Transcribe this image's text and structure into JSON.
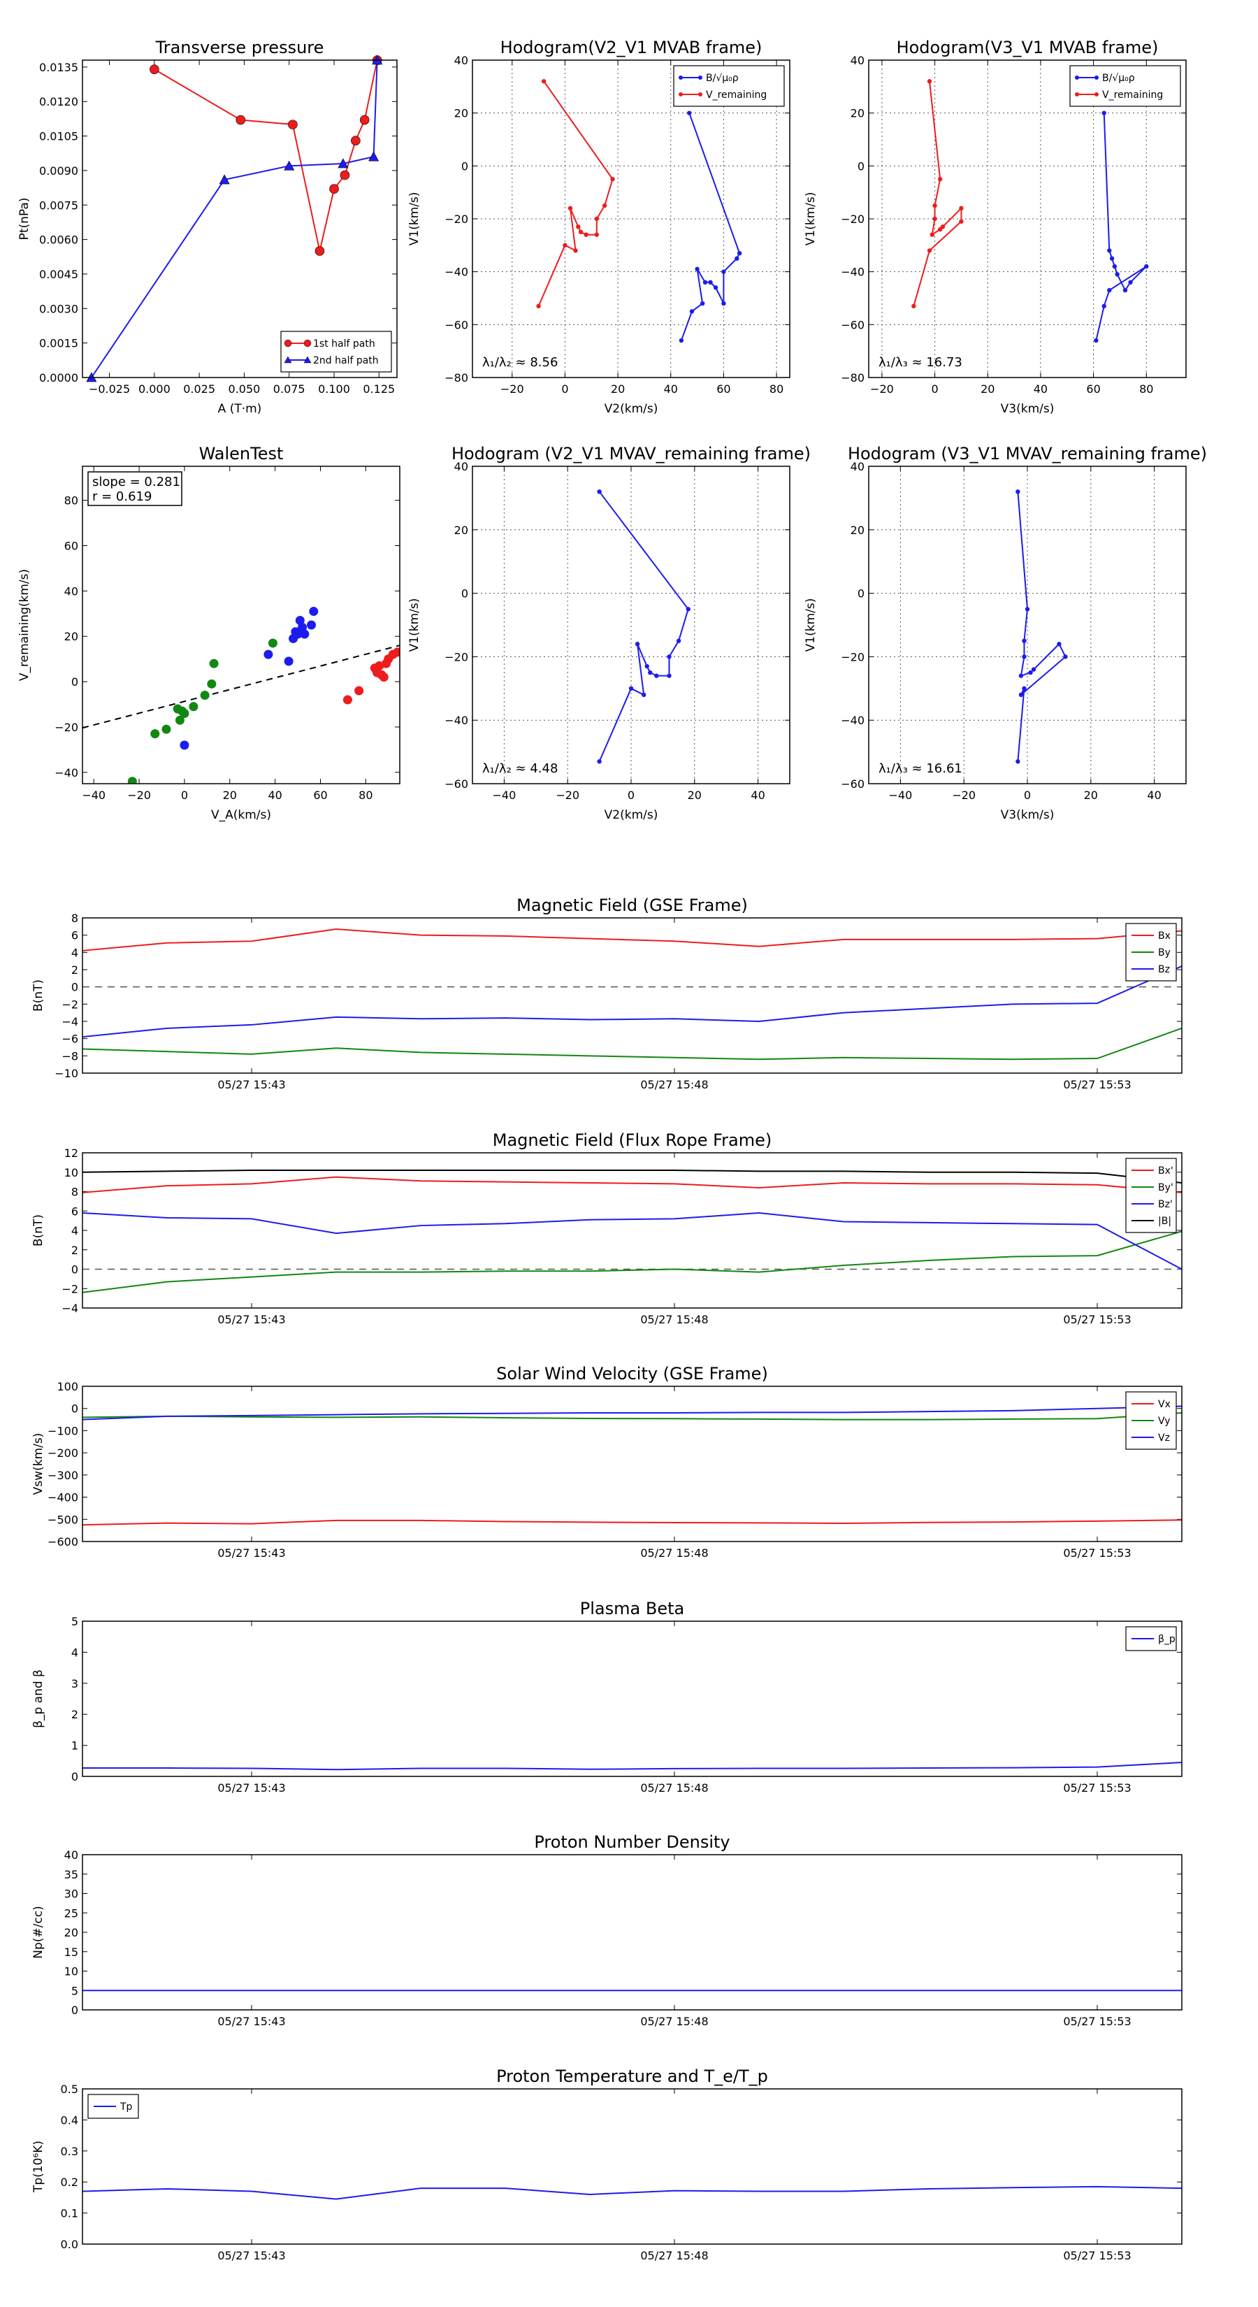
{
  "colors": {
    "red": "#ee1c1c",
    "green": "#118811",
    "blue": "#1c1cee",
    "black": "#000000",
    "grid": "#555555"
  },
  "chart_data": [
    {
      "id": "transverse-pressure",
      "type": "line",
      "title": "Transverse pressure",
      "xlabel": "A (T·m)",
      "ylabel": "Pt(nPa)",
      "xlim": [
        -0.04,
        0.135
      ],
      "ylim": [
        0,
        0.0138
      ],
      "xticks": [
        -0.025,
        0,
        0.025,
        0.05,
        0.075,
        0.1,
        0.125
      ],
      "xticklabels": [
        "−0.025",
        "0.000",
        "0.025",
        "0.050",
        "0.075",
        "0.100",
        "0.125"
      ],
      "yticks": [
        0,
        0.0015,
        0.003,
        0.0045,
        0.006,
        0.0075,
        0.009,
        0.0105,
        0.012,
        0.0135
      ],
      "yticklabels": [
        "0.0000",
        "0.0015",
        "0.0030",
        "0.0045",
        "0.0060",
        "0.0075",
        "0.0090",
        "0.0105",
        "0.0120",
        "0.0135"
      ],
      "grid": false,
      "legend": "lower-right",
      "series": [
        {
          "name": "1st half path",
          "color": "red",
          "marker": "circle",
          "x": [
            0.0,
            0.048,
            0.077,
            0.092,
            0.1,
            0.106,
            0.112,
            0.117,
            0.124
          ],
          "y": [
            0.0134,
            0.0112,
            0.011,
            0.0055,
            0.0082,
            0.0088,
            0.0103,
            0.0112,
            0.0138
          ]
        },
        {
          "name": "2nd half path",
          "color": "blue",
          "marker": "triangle",
          "x": [
            -0.035,
            0.039,
            0.075,
            0.105,
            0.122,
            0.124
          ],
          "y": [
            0.0,
            0.0086,
            0.0092,
            0.0093,
            0.0096,
            0.0138
          ]
        }
      ]
    },
    {
      "id": "hodogram-v2-v1-mvab",
      "type": "line",
      "title": "Hodogram(V2_V1 MVAB frame)",
      "xlabel": "V2(km/s)",
      "ylabel": "V1(km/s)",
      "xlim": [
        -35,
        85
      ],
      "ylim": [
        -80,
        40
      ],
      "xticks": [
        -20,
        0,
        20,
        40,
        60,
        80
      ],
      "yticks": [
        -80,
        -60,
        -40,
        -20,
        0,
        20,
        40
      ],
      "grid": true,
      "legend": "top-right",
      "annotation": "λ₁/λ₂ ≈ 8.56",
      "series": [
        {
          "name": "B/√μ₀ρ",
          "color": "blue",
          "marker": "dot",
          "x": [
            47,
            66,
            65,
            60,
            60,
            57,
            55,
            53,
            50,
            52,
            48,
            44
          ],
          "y": [
            20,
            -33,
            -35,
            -40,
            -52,
            -46,
            -44,
            -44,
            -39,
            -52,
            -55,
            -66
          ]
        },
        {
          "name": "V_remaining",
          "color": "red",
          "marker": "dot",
          "x": [
            -8,
            18,
            15,
            12,
            12,
            8,
            6,
            5,
            2,
            4,
            0,
            -10
          ],
          "y": [
            32,
            -5,
            -15,
            -20,
            -26,
            -26,
            -25,
            -23,
            -16,
            -32,
            -30,
            -53
          ]
        }
      ]
    },
    {
      "id": "hodogram-v3-v1-mvab",
      "type": "line",
      "title": "Hodogram(V3_V1 MVAB frame)",
      "xlabel": "V3(km/s)",
      "ylabel": "V1(km/s)",
      "xlim": [
        -25,
        95
      ],
      "ylim": [
        -80,
        40
      ],
      "xticks": [
        -20,
        0,
        20,
        40,
        60,
        80
      ],
      "yticks": [
        -80,
        -60,
        -40,
        -20,
        0,
        20,
        40
      ],
      "grid": true,
      "legend": "top-right",
      "annotation": "λ₁/λ₃ ≈ 16.73",
      "series": [
        {
          "name": "B/√μ₀ρ",
          "color": "blue",
          "marker": "dot",
          "x": [
            64,
            66,
            67,
            68,
            69,
            72,
            74,
            80,
            66,
            64,
            61
          ],
          "y": [
            20,
            -32,
            -35,
            -38,
            -41,
            -47,
            -44,
            -38,
            -47,
            -53,
            -66
          ]
        },
        {
          "name": "V_remaining",
          "color": "red",
          "marker": "dot",
          "x": [
            -2,
            2,
            0,
            0,
            -1,
            2,
            3,
            10,
            10,
            -2,
            -8
          ],
          "y": [
            32,
            -5,
            -15,
            -20,
            -26,
            -24,
            -23,
            -16,
            -21,
            -32,
            -53
          ]
        }
      ]
    },
    {
      "id": "walen-test",
      "type": "scatter",
      "title": "WalenTest",
      "xlabel": "V_A(km/s)",
      "ylabel": "V_remaining(km/s)",
      "xlim": [
        -45,
        95
      ],
      "ylim": [
        -45,
        95
      ],
      "xticks": [
        -40,
        -20,
        0,
        20,
        40,
        60,
        80
      ],
      "yticks": [
        -40,
        -20,
        0,
        20,
        40,
        60,
        80
      ],
      "grid": false,
      "annotation_lines": [
        "slope = 0.281",
        "r = 0.619"
      ],
      "fit_line": {
        "slope": 0.281,
        "x": [
          -45,
          95
        ],
        "y": [
          -20.4,
          16.0
        ]
      },
      "series": [
        {
          "color": "green",
          "x": [
            -23,
            -13,
            -8,
            -3,
            -2,
            -1,
            0,
            4,
            9,
            12,
            13,
            39
          ],
          "y": [
            -44,
            -23,
            -21,
            -12,
            -17,
            -13,
            -14,
            -11,
            -6,
            -1,
            8,
            17
          ]
        },
        {
          "color": "blue",
          "x": [
            0,
            37,
            46,
            48,
            49,
            50,
            51,
            52,
            53,
            56,
            57
          ],
          "y": [
            -28,
            12,
            9,
            19,
            22,
            21,
            27,
            24,
            21,
            25,
            31
          ]
        },
        {
          "color": "red",
          "x": [
            72,
            77,
            84,
            85,
            86,
            87,
            88,
            89,
            90,
            92,
            94
          ],
          "y": [
            -8,
            -4,
            6,
            4,
            7,
            3,
            2,
            8,
            10,
            12,
            13
          ]
        }
      ]
    },
    {
      "id": "hodogram-v2-v1-mvav",
      "type": "line",
      "title": "Hodogram (V2_V1 MVAV_remaining frame)",
      "xlabel": "V2(km/s)",
      "ylabel": "V1(km/s)",
      "xlim": [
        -50,
        50
      ],
      "ylim": [
        -60,
        40
      ],
      "xticks": [
        -40,
        -20,
        0,
        20,
        40
      ],
      "yticks": [
        -60,
        -40,
        -20,
        0,
        20,
        40
      ],
      "grid": true,
      "annotation": "λ₁/λ₂ ≈ 4.48",
      "series": [
        {
          "color": "blue",
          "marker": "dot",
          "x": [
            -10,
            18,
            15,
            12,
            12,
            8,
            6,
            5,
            2,
            4,
            0,
            -10
          ],
          "y": [
            32,
            -5,
            -15,
            -20,
            -26,
            -26,
            -25,
            -23,
            -16,
            -32,
            -30,
            -53
          ]
        }
      ]
    },
    {
      "id": "hodogram-v3-v1-mvav",
      "type": "line",
      "title": "Hodogram (V3_V1 MVAV_remaining frame)",
      "xlabel": "V3(km/s)",
      "ylabel": "V1(km/s)",
      "xlim": [
        -50,
        50
      ],
      "ylim": [
        -60,
        40
      ],
      "xticks": [
        -40,
        -20,
        0,
        20,
        40
      ],
      "yticks": [
        -60,
        -40,
        -20,
        0,
        20,
        40
      ],
      "grid": true,
      "annotation": "λ₁/λ₃ ≈ 16.61",
      "series": [
        {
          "color": "blue",
          "marker": "dot",
          "x": [
            -3,
            0,
            -1,
            -1,
            -2,
            1,
            2,
            10,
            12,
            -2,
            -1,
            -3
          ],
          "y": [
            32,
            -5,
            -15,
            -20,
            -26,
            -25,
            -24,
            -16,
            -20,
            -32,
            -30,
            -53
          ]
        }
      ]
    },
    {
      "id": "magnetic-field-gse",
      "type": "line",
      "title": "Magnetic Field (GSE Frame)",
      "ylabel": "B(nT)",
      "xlim": [
        0,
        13
      ],
      "ylim": [
        -10,
        8
      ],
      "yticks": [
        -10,
        -8,
        -6,
        -4,
        -2,
        0,
        2,
        4,
        6,
        8
      ],
      "xticks": [
        2,
        7,
        12
      ],
      "xticklabels": [
        "05/27 15:43",
        "05/27 15:48",
        "05/27 15:53"
      ],
      "zero_line": true,
      "legend": "top-right",
      "x": [
        0,
        1,
        2,
        3,
        4,
        5,
        6,
        7,
        8,
        9,
        10,
        11,
        12,
        13
      ],
      "series": [
        {
          "name": "Bx",
          "color": "red",
          "values": [
            4.2,
            5.1,
            5.3,
            6.7,
            6.0,
            5.9,
            5.6,
            5.3,
            4.7,
            5.5,
            5.5,
            5.5,
            5.6,
            6.5
          ]
        },
        {
          "name": "By",
          "color": "green",
          "values": [
            -7.2,
            -7.5,
            -7.8,
            -7.1,
            -7.6,
            -7.8,
            -8.0,
            -8.2,
            -8.4,
            -8.2,
            -8.3,
            -8.4,
            -8.3,
            -4.8
          ]
        },
        {
          "name": "Bz",
          "color": "blue",
          "values": [
            -5.8,
            -4.8,
            -4.4,
            -3.5,
            -3.7,
            -3.6,
            -3.8,
            -3.7,
            -4.0,
            -3.0,
            -2.5,
            -2.0,
            -1.9,
            2.4
          ]
        }
      ]
    },
    {
      "id": "magnetic-field-flux-rope",
      "type": "line",
      "title": "Magnetic Field (Flux Rope Frame)",
      "ylabel": "B(nT)",
      "xlim": [
        0,
        13
      ],
      "ylim": [
        -4,
        12
      ],
      "yticks": [
        -4,
        -2,
        0,
        2,
        4,
        6,
        8,
        10,
        12
      ],
      "xticks": [
        2,
        7,
        12
      ],
      "xticklabels": [
        "05/27 15:43",
        "05/27 15:48",
        "05/27 15:53"
      ],
      "zero_line": true,
      "legend": "top-right",
      "x": [
        0,
        1,
        2,
        3,
        4,
        5,
        6,
        7,
        8,
        9,
        10,
        11,
        12,
        13
      ],
      "series": [
        {
          "name": "Bx'",
          "color": "red",
          "values": [
            7.9,
            8.6,
            8.8,
            9.5,
            9.1,
            9.0,
            8.9,
            8.8,
            8.4,
            8.9,
            8.8,
            8.8,
            8.7,
            7.9
          ]
        },
        {
          "name": "By'",
          "color": "green",
          "values": [
            -2.4,
            -1.3,
            -0.8,
            -0.3,
            -0.3,
            -0.2,
            -0.2,
            0.0,
            -0.3,
            0.4,
            0.9,
            1.3,
            1.4,
            3.9
          ]
        },
        {
          "name": "Bz'",
          "color": "blue",
          "values": [
            5.8,
            5.3,
            5.2,
            3.7,
            4.5,
            4.7,
            5.1,
            5.2,
            5.8,
            4.9,
            4.8,
            4.7,
            4.6,
            0.0
          ]
        },
        {
          "name": "|B|",
          "color": "black",
          "values": [
            10.0,
            10.1,
            10.2,
            10.2,
            10.2,
            10.2,
            10.2,
            10.2,
            10.1,
            10.1,
            10.0,
            10.0,
            9.9,
            8.9
          ]
        }
      ]
    },
    {
      "id": "solar-wind-velocity",
      "type": "line",
      "title": "Solar Wind Velocity (GSE Frame)",
      "ylabel": "Vsw(km/s)",
      "xlim": [
        0,
        13
      ],
      "ylim": [
        -600,
        100
      ],
      "yticks": [
        -600,
        -500,
        -400,
        -300,
        -200,
        -100,
        0,
        100
      ],
      "xticks": [
        2,
        7,
        12
      ],
      "xticklabels": [
        "05/27 15:43",
        "05/27 15:48",
        "05/27 15:53"
      ],
      "legend": "top-right",
      "x": [
        0,
        1,
        2,
        3,
        4,
        5,
        6,
        7,
        8,
        9,
        10,
        11,
        12,
        13
      ],
      "series": [
        {
          "name": "Vx",
          "color": "red",
          "values": [
            -525,
            -517,
            -520,
            -505,
            -505,
            -510,
            -513,
            -515,
            -516,
            -518,
            -514,
            -512,
            -508,
            -503
          ]
        },
        {
          "name": "Vy",
          "color": "green",
          "values": [
            -40,
            -35,
            -38,
            -40,
            -38,
            -42,
            -45,
            -46,
            -48,
            -50,
            -50,
            -48,
            -46,
            -20
          ]
        },
        {
          "name": "Vz",
          "color": "blue",
          "values": [
            -50,
            -35,
            -32,
            -28,
            -24,
            -22,
            -20,
            -20,
            -18,
            -18,
            -14,
            -10,
            0,
            10
          ]
        }
      ]
    },
    {
      "id": "plasma-beta",
      "type": "line",
      "title": "Plasma Beta",
      "ylabel": "β_p and β",
      "xlim": [
        0,
        13
      ],
      "ylim": [
        0,
        5
      ],
      "yticks": [
        0,
        1,
        2,
        3,
        4,
        5
      ],
      "xticks": [
        2,
        7,
        12
      ],
      "xticklabels": [
        "05/27 15:43",
        "05/27 15:48",
        "05/27 15:53"
      ],
      "legend": "top-right",
      "x": [
        0,
        1,
        2,
        3,
        4,
        5,
        6,
        7,
        8,
        9,
        10,
        11,
        12,
        13
      ],
      "series": [
        {
          "name": "β_p",
          "color": "blue",
          "values": [
            0.27,
            0.27,
            0.26,
            0.22,
            0.26,
            0.26,
            0.23,
            0.25,
            0.26,
            0.26,
            0.27,
            0.28,
            0.3,
            0.45
          ]
        }
      ]
    },
    {
      "id": "proton-number-density",
      "type": "line",
      "title": "Proton Number Density",
      "ylabel": "Np(#/cc)",
      "xlim": [
        0,
        13
      ],
      "ylim": [
        0,
        40
      ],
      "yticks": [
        0,
        5,
        10,
        15,
        20,
        25,
        30,
        35,
        40
      ],
      "xticks": [
        2,
        7,
        12
      ],
      "xticklabels": [
        "05/27 15:43",
        "05/27 15:48",
        "05/27 15:53"
      ],
      "x": [
        0,
        1,
        2,
        3,
        4,
        5,
        6,
        7,
        8,
        9,
        10,
        11,
        12,
        13
      ],
      "series": [
        {
          "color": "blue",
          "values": [
            5.0,
            5.0,
            5.0,
            5.0,
            5.0,
            5.0,
            5.0,
            5.0,
            5.0,
            5.0,
            5.0,
            5.0,
            5.0,
            5.0
          ]
        }
      ]
    },
    {
      "id": "proton-temperature",
      "type": "line",
      "title": "Proton Temperature and T_e/T_p",
      "ylabel": "Tp(10⁶K)",
      "xlim": [
        0,
        13
      ],
      "ylim": [
        0,
        0.5
      ],
      "yticks": [
        0,
        0.1,
        0.2,
        0.3,
        0.4,
        0.5
      ],
      "yticklabels": [
        "0.0",
        "0.1",
        "0.2",
        "0.3",
        "0.4",
        "0.5"
      ],
      "xticks": [
        2,
        7,
        12
      ],
      "xticklabels": [
        "05/27 15:43",
        "05/27 15:48",
        "05/27 15:53"
      ],
      "legend": "top-left",
      "x": [
        0,
        1,
        2,
        3,
        4,
        5,
        6,
        7,
        8,
        9,
        10,
        11,
        12,
        13
      ],
      "series": [
        {
          "name": "Tp",
          "color": "blue",
          "values": [
            0.17,
            0.178,
            0.17,
            0.145,
            0.18,
            0.18,
            0.16,
            0.172,
            0.17,
            0.17,
            0.178,
            0.182,
            0.185,
            0.18
          ]
        }
      ]
    }
  ]
}
